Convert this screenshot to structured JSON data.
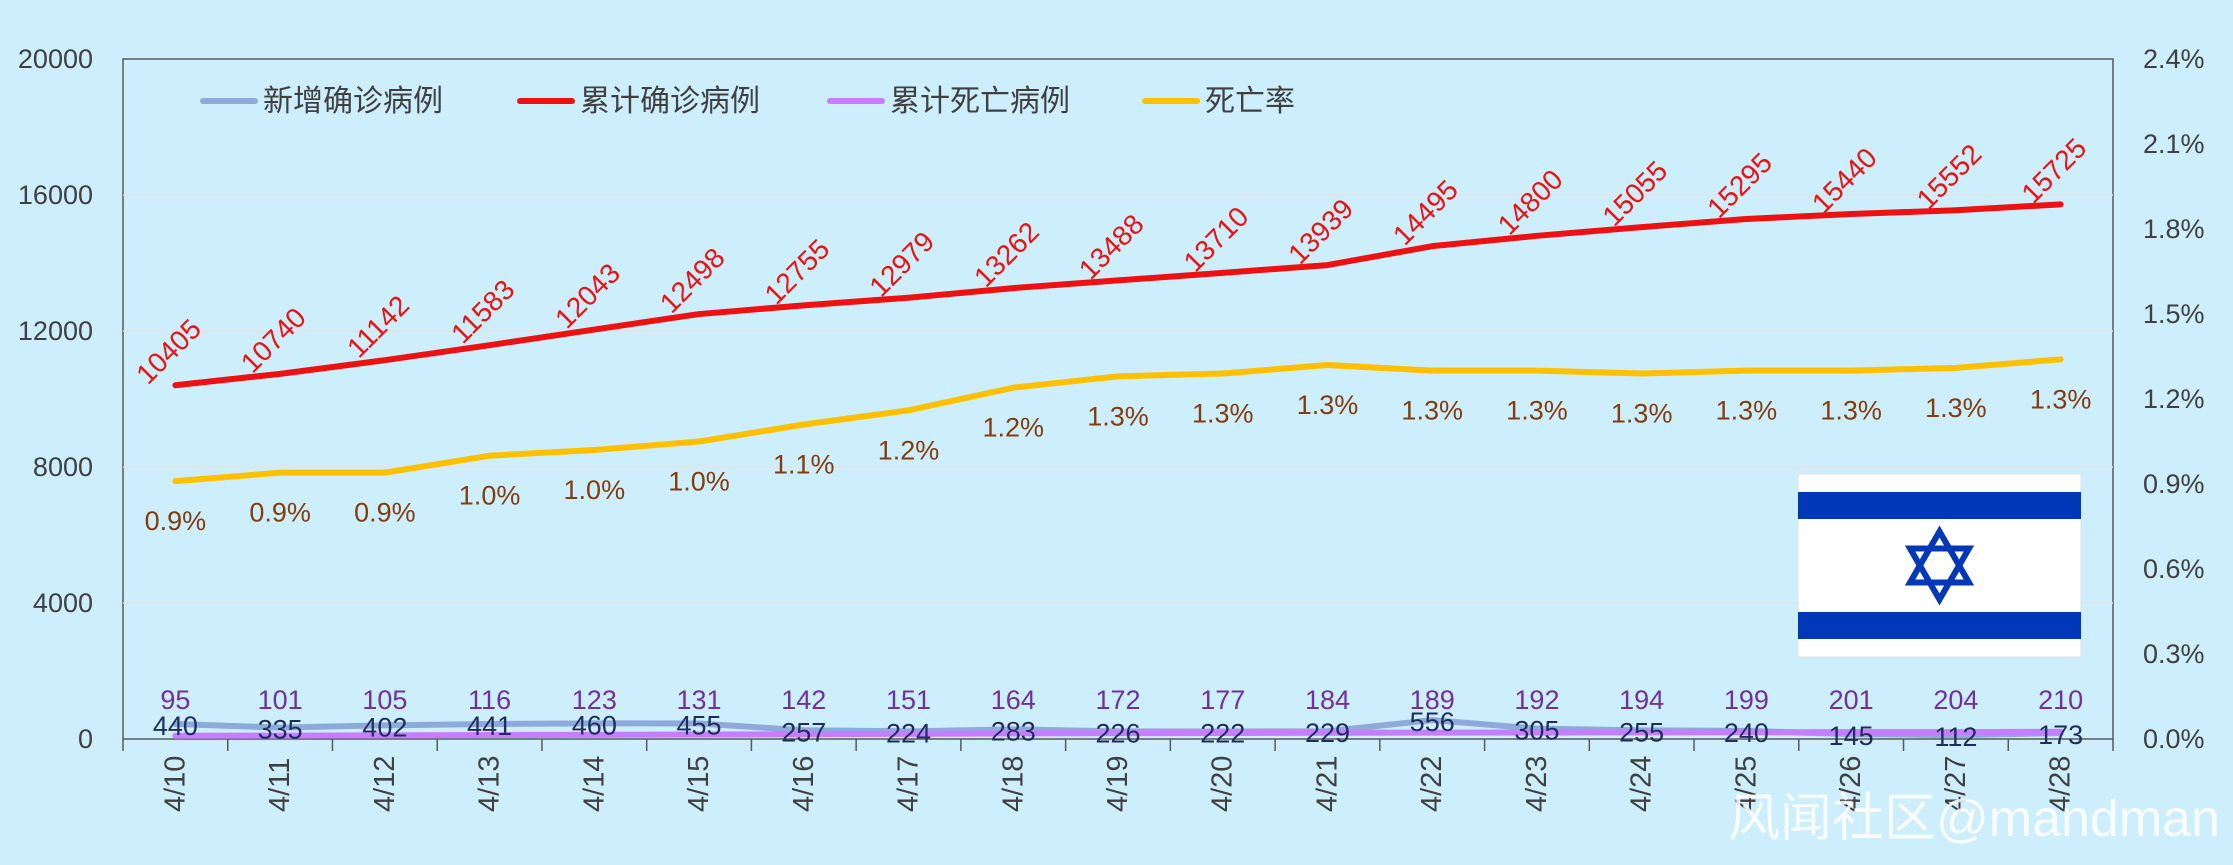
{
  "chart_data": {
    "type": "line",
    "categories": [
      "4/10",
      "4/11",
      "4/12",
      "4/13",
      "4/14",
      "4/15",
      "4/16",
      "4/17",
      "4/18",
      "4/19",
      "4/20",
      "4/21",
      "4/22",
      "4/23",
      "4/24",
      "4/25",
      "4/26",
      "4/27",
      "4/28"
    ],
    "left_ticks": [
      "20000",
      "16000",
      "12000",
      "8000",
      "4000",
      "0"
    ],
    "right_ticks": [
      "2.4%",
      "2.1%",
      "1.8%",
      "1.5%",
      "1.2%",
      "0.9%",
      "0.6%",
      "0.3%",
      "0.0%"
    ],
    "ylim_left": [
      0,
      20000
    ],
    "ylim_right": [
      0,
      0.024
    ],
    "series": [
      {
        "name": "新增确诊病例",
        "color": "#8eaadb",
        "axis": "left",
        "values": [
          440,
          335,
          402,
          441,
          460,
          455,
          257,
          224,
          283,
          226,
          222,
          229,
          556,
          305,
          255,
          240,
          145,
          112,
          173
        ],
        "labels": [
          "440",
          "335",
          "402",
          "441",
          "460",
          "455",
          "257",
          "224",
          "283",
          "226",
          "222",
          "229",
          "556",
          "305",
          "255",
          "240",
          "145",
          "112",
          "173"
        ],
        "label_color": "#1f2d5c"
      },
      {
        "name": "累计确诊病例",
        "color": "#ee1111",
        "axis": "left",
        "values": [
          10405,
          10740,
          11142,
          11583,
          12043,
          12498,
          12755,
          12979,
          13262,
          13488,
          13710,
          13939,
          14495,
          14800,
          15055,
          15295,
          15440,
          15552,
          15725
        ],
        "labels": [
          "10405",
          "10740",
          "11142",
          "11583",
          "12043",
          "12498",
          "12755",
          "12979",
          "13262",
          "13488",
          "13710",
          "13939",
          "14495",
          "14800",
          "15055",
          "15295",
          "15440",
          "15552",
          "15725"
        ],
        "label_color": "#ee1111"
      },
      {
        "name": "累计死亡病例",
        "color": "#c77dff",
        "axis": "left",
        "values": [
          95,
          101,
          105,
          116,
          123,
          131,
          142,
          151,
          164,
          172,
          177,
          184,
          189,
          192,
          194,
          199,
          201,
          204,
          210
        ],
        "labels": [
          "95",
          "101",
          "105",
          "116",
          "123",
          "131",
          "142",
          "151",
          "164",
          "172",
          "177",
          "184",
          "189",
          "192",
          "194",
          "199",
          "201",
          "204",
          "210"
        ],
        "label_color": "#7030a0"
      },
      {
        "name": "死亡率",
        "color": "#ffc000",
        "axis": "right",
        "values": [
          0.0091,
          0.0094,
          0.0094,
          0.01,
          0.0102,
          0.0105,
          0.0111,
          0.0116,
          0.0124,
          0.0128,
          0.0129,
          0.0132,
          0.013,
          0.013,
          0.0129,
          0.013,
          0.013,
          0.0131,
          0.0134
        ],
        "labels": [
          "0.9%",
          "0.9%",
          "0.9%",
          "1.0%",
          "1.0%",
          "1.0%",
          "1.1%",
          "1.2%",
          "1.2%",
          "1.3%",
          "1.3%",
          "1.3%",
          "1.3%",
          "1.3%",
          "1.3%",
          "1.3%",
          "1.3%",
          "1.3%",
          "1.3%"
        ],
        "label_color": "#843c0c"
      }
    ],
    "grid": true,
    "legend_position": "top-left"
  },
  "flag": {
    "name": "Israel flag",
    "white": "#ffffff",
    "blue": "#0038b8"
  },
  "watermark": "风闻社区@mandman"
}
